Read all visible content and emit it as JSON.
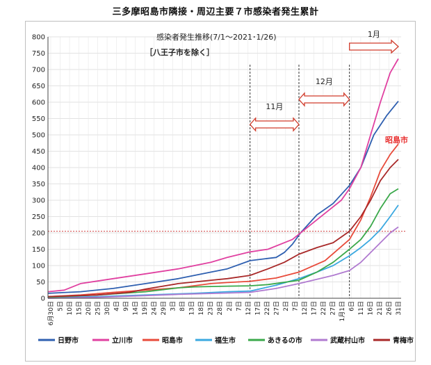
{
  "page": {
    "title": "三多摩昭島市隣接・周辺主要７市感染者発生累計"
  },
  "chart_data": {
    "type": "line",
    "title": "感染者発生推移(7/1～2021･1/26)",
    "subtitle": "［八王子市を除く］",
    "xlabel": "",
    "ylabel": "",
    "ylim": [
      0,
      800
    ],
    "yticks": [
      0,
      50,
      100,
      150,
      200,
      250,
      300,
      350,
      400,
      450,
      500,
      550,
      600,
      650,
      700,
      750,
      800
    ],
    "x_range_days": [
      0,
      215
    ],
    "x_tick_labels": [
      "6月30日",
      "5日",
      "10日",
      "15日",
      "20日",
      "25日",
      "30日",
      "4日",
      "9日",
      "14日",
      "19日",
      "24日",
      "29日",
      "3日",
      "8日",
      "13日",
      "18日",
      "23日",
      "28日",
      "2日",
      "7日",
      "12日",
      "17日",
      "22日",
      "27日",
      "2日",
      "7日",
      "12日",
      "17日",
      "22日",
      "27日",
      "1月1日",
      "6日",
      "11日",
      "16日",
      "21日",
      "26日",
      "31日"
    ],
    "reference_line": {
      "y": 205,
      "color": "#d04040",
      "style": "dotted"
    },
    "month_markers": [
      {
        "label": "11月",
        "start_day": 124,
        "end_day": 154
      },
      {
        "label": "12月",
        "start_day": 154,
        "end_day": 185
      },
      {
        "label": "1月",
        "start_day": 185,
        "end_day": 215
      }
    ],
    "marker_lines_days": [
      124,
      154,
      185
    ],
    "highlight_label": "昭島市",
    "highlight_color": "#e83030",
    "legend_position": "bottom",
    "series": [
      {
        "name": "日野市",
        "color": "#2e5fb0",
        "points": [
          [
            0,
            15
          ],
          [
            20,
            20
          ],
          [
            40,
            30
          ],
          [
            60,
            45
          ],
          [
            80,
            60
          ],
          [
            100,
            80
          ],
          [
            110,
            90
          ],
          [
            124,
            115
          ],
          [
            135,
            122
          ],
          [
            140,
            125
          ],
          [
            145,
            140
          ],
          [
            150,
            165
          ],
          [
            155,
            200
          ],
          [
            165,
            255
          ],
          [
            175,
            290
          ],
          [
            185,
            345
          ],
          [
            192,
            400
          ],
          [
            200,
            500
          ],
          [
            208,
            560
          ],
          [
            215,
            603
          ]
        ]
      },
      {
        "name": "立川市",
        "color": "#e040a0",
        "points": [
          [
            0,
            20
          ],
          [
            10,
            25
          ],
          [
            20,
            45
          ],
          [
            40,
            60
          ],
          [
            60,
            75
          ],
          [
            80,
            90
          ],
          [
            100,
            110
          ],
          [
            110,
            125
          ],
          [
            124,
            142
          ],
          [
            135,
            150
          ],
          [
            150,
            180
          ],
          [
            160,
            220
          ],
          [
            170,
            260
          ],
          [
            180,
            300
          ],
          [
            185,
            335
          ],
          [
            192,
            400
          ],
          [
            198,
            500
          ],
          [
            204,
            600
          ],
          [
            210,
            690
          ],
          [
            215,
            733
          ]
        ]
      },
      {
        "name": "昭島市",
        "color": "#e84a3a",
        "points": [
          [
            0,
            5
          ],
          [
            20,
            10
          ],
          [
            40,
            18
          ],
          [
            60,
            25
          ],
          [
            80,
            32
          ],
          [
            100,
            45
          ],
          [
            110,
            48
          ],
          [
            124,
            52
          ],
          [
            140,
            62
          ],
          [
            154,
            80
          ],
          [
            170,
            115
          ],
          [
            185,
            180
          ],
          [
            192,
            240
          ],
          [
            198,
            310
          ],
          [
            204,
            390
          ],
          [
            210,
            440
          ],
          [
            215,
            472
          ]
        ]
      },
      {
        "name": "福生市",
        "color": "#3aa8e0",
        "points": [
          [
            0,
            2
          ],
          [
            30,
            5
          ],
          [
            60,
            10
          ],
          [
            90,
            15
          ],
          [
            110,
            20
          ],
          [
            124,
            22
          ],
          [
            140,
            40
          ],
          [
            154,
            60
          ],
          [
            165,
            80
          ],
          [
            175,
            100
          ],
          [
            185,
            130
          ],
          [
            192,
            155
          ],
          [
            198,
            180
          ],
          [
            204,
            210
          ],
          [
            210,
            250
          ],
          [
            215,
            285
          ]
        ]
      },
      {
        "name": "あきるの市",
        "color": "#3aa84a",
        "points": [
          [
            0,
            3
          ],
          [
            30,
            10
          ],
          [
            60,
            20
          ],
          [
            80,
            32
          ],
          [
            90,
            35
          ],
          [
            110,
            37
          ],
          [
            124,
            38
          ],
          [
            135,
            42
          ],
          [
            154,
            55
          ],
          [
            165,
            80
          ],
          [
            175,
            110
          ],
          [
            185,
            150
          ],
          [
            192,
            180
          ],
          [
            198,
            220
          ],
          [
            204,
            275
          ],
          [
            210,
            320
          ],
          [
            215,
            335
          ]
        ]
      },
      {
        "name": "武蔵村山市",
        "color": "#b07ad0",
        "points": [
          [
            0,
            0
          ],
          [
            30,
            3
          ],
          [
            60,
            8
          ],
          [
            80,
            12
          ],
          [
            110,
            16
          ],
          [
            124,
            18
          ],
          [
            140,
            30
          ],
          [
            154,
            45
          ],
          [
            165,
            58
          ],
          [
            175,
            70
          ],
          [
            185,
            85
          ],
          [
            192,
            110
          ],
          [
            198,
            140
          ],
          [
            204,
            170
          ],
          [
            210,
            200
          ],
          [
            215,
            218
          ]
        ]
      },
      {
        "name": "青梅市",
        "color": "#a82828",
        "points": [
          [
            0,
            5
          ],
          [
            30,
            10
          ],
          [
            50,
            18
          ],
          [
            60,
            28
          ],
          [
            80,
            45
          ],
          [
            100,
            55
          ],
          [
            110,
            60
          ],
          [
            124,
            70
          ],
          [
            135,
            90
          ],
          [
            145,
            110
          ],
          [
            154,
            135
          ],
          [
            165,
            155
          ],
          [
            175,
            170
          ],
          [
            185,
            205
          ],
          [
            192,
            250
          ],
          [
            198,
            300
          ],
          [
            204,
            360
          ],
          [
            210,
            400
          ],
          [
            215,
            425
          ]
        ]
      }
    ]
  }
}
